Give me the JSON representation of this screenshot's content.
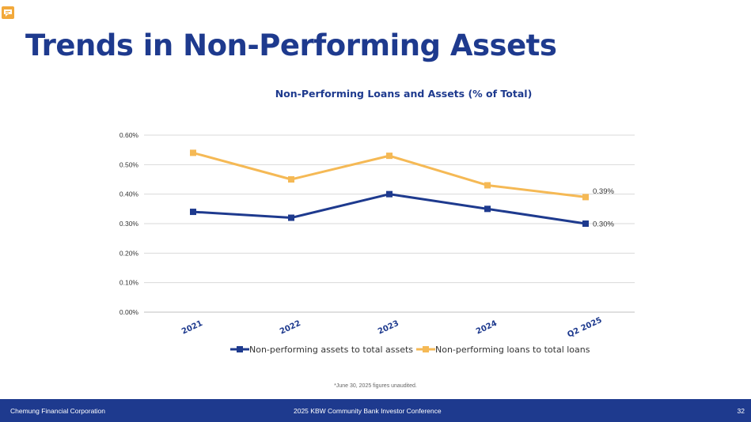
{
  "slide": {
    "title": "Trends in Non-Performing Assets",
    "footnote": "*June 30, 2025 figures unaudited."
  },
  "footer": {
    "company": "Chemung Financial Corporation",
    "event": "2025 KBW Community Bank Investor Conference",
    "page_number": "32"
  },
  "icons": {
    "top_left": "comment-icon"
  },
  "chart_data": {
    "type": "line",
    "title": "Non-Performing Loans and Assets (% of Total)",
    "categories": [
      "2021",
      "2022",
      "2023",
      "2024",
      "Q2 2025"
    ],
    "y_tick_labels": [
      "0.00%",
      "0.10%",
      "0.20%",
      "0.30%",
      "0.40%",
      "0.50%",
      "0.60%"
    ],
    "ylim": [
      0,
      0.6
    ],
    "y_unit": "%",
    "grid": true,
    "legend_position": "bottom",
    "series": [
      {
        "name": "Non-performing assets to total assets",
        "values": [
          0.34,
          0.32,
          0.4,
          0.35,
          0.3
        ],
        "color": "#1e3a8e",
        "end_label": "0.30%"
      },
      {
        "name": "Non-performing loans to total loans",
        "values": [
          0.54,
          0.45,
          0.53,
          0.43,
          0.39
        ],
        "color": "#f5b955",
        "end_label": "0.39%"
      }
    ]
  }
}
